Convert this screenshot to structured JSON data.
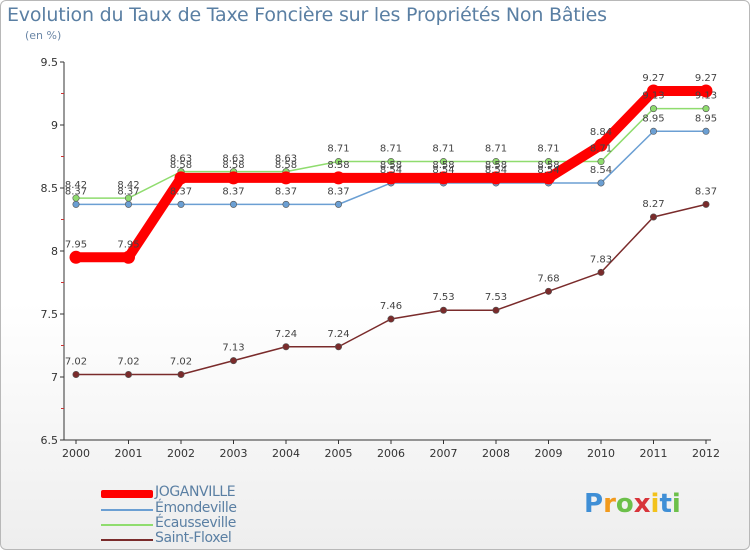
{
  "chart_data": {
    "type": "line",
    "title": "Evolution du Taux de Taxe Foncière sur les Propriétés Non Bâties",
    "subtitle": "(en %)",
    "x": [
      "2000",
      "2001",
      "2002",
      "2003",
      "2004",
      "2005",
      "2006",
      "2007",
      "2008",
      "2009",
      "2010",
      "2011",
      "2012"
    ],
    "ylim": [
      6.5,
      9.5
    ],
    "yticks": [
      "6.5",
      "7",
      "7.5",
      "8",
      "8.5",
      "9",
      "9.5"
    ],
    "grid": false,
    "legend_position": "bottom-left",
    "series": [
      {
        "name": "Saint-Floxel",
        "color": "#7a2b2b",
        "values": [
          7.02,
          7.02,
          7.02,
          7.13,
          7.24,
          7.24,
          7.46,
          7.53,
          7.53,
          7.68,
          7.83,
          8.27,
          8.37
        ],
        "labels": [
          "7.02",
          "7.02",
          "7.02",
          "7.13",
          "7.24",
          "7.24",
          "7.46",
          "7.53",
          "7.53",
          "7.68",
          "7.83",
          "8.27",
          "8.37"
        ]
      },
      {
        "name": "Émondeville",
        "color": "#6b9fd3",
        "values": [
          8.37,
          8.37,
          8.37,
          8.37,
          8.37,
          8.37,
          8.54,
          8.54,
          8.54,
          8.54,
          8.54,
          8.95,
          8.95
        ],
        "labels": [
          "8.37",
          "8.37",
          "8.37",
          "8.37",
          "8.37",
          "8.37",
          "8.54",
          "8.54",
          "8.54",
          "8.54",
          "8.54",
          "8.95",
          "8.95"
        ]
      },
      {
        "name": "Écausseville",
        "color": "#8fdc6e",
        "values": [
          8.42,
          8.42,
          8.63,
          8.63,
          8.63,
          8.71,
          8.71,
          8.71,
          8.71,
          8.71,
          8.71,
          9.13,
          9.13
        ],
        "labels": [
          "8.42",
          "8.42",
          "8.63",
          "8.63",
          "8.63",
          "8.71",
          "8.71",
          "8.71",
          "8.71",
          "8.71",
          "8.71",
          "9.13",
          "9.13"
        ]
      },
      {
        "name": "JOGANVILLE",
        "color": "#ff0000",
        "values": [
          7.95,
          7.95,
          8.58,
          8.58,
          8.58,
          8.58,
          8.58,
          8.58,
          8.58,
          8.58,
          8.84,
          9.27,
          9.27
        ],
        "labels": [
          "7.95",
          "7.95",
          "8.58",
          "8.58",
          "8.58",
          "8.58",
          "8.58",
          "8.58",
          "8.58",
          "8.58",
          "8.84",
          "9.27",
          "9.27"
        ]
      }
    ],
    "legend": [
      "JOGANVILLE",
      "Émondeville",
      "Écausseville",
      "Saint-Floxel"
    ]
  },
  "logo": {
    "letters": [
      "P",
      "r",
      "o",
      "x",
      "i",
      "t",
      "i"
    ],
    "colors": [
      "#3f8fd6",
      "#f29a1c",
      "#6cc04a",
      "#d8343a",
      "#f2c21c",
      "#3f8fd6",
      "#6cc04a"
    ]
  }
}
